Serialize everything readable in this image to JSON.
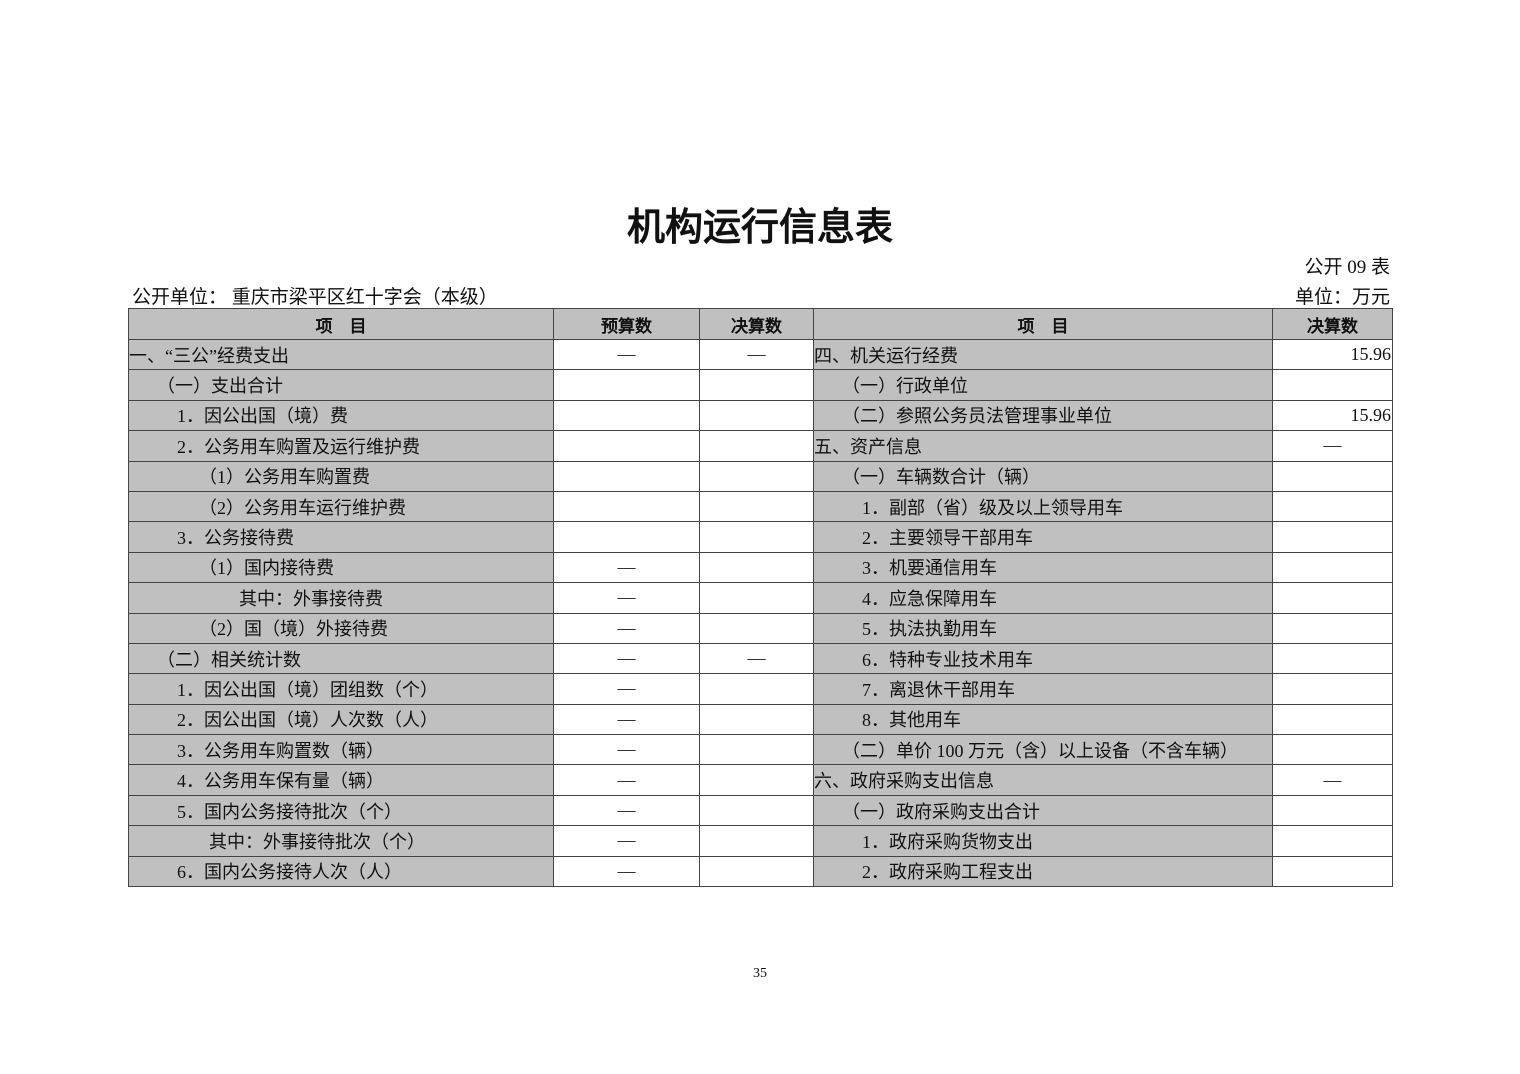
{
  "title": "机构运行信息表",
  "table_code": "公开 09 表",
  "unit_label": "公开单位：  重庆市梁平区红十字会（本级）",
  "unit": "单位：万元",
  "headers": {
    "item_left": "项　目",
    "budget": "预算数",
    "final_left": "决算数",
    "item_right": "项　目",
    "final_right": "决算数"
  },
  "left_rows": [
    {
      "label": "一、“三公”经费支出",
      "indent": 0,
      "budget": "—",
      "final": "—"
    },
    {
      "label": "（一）支出合计",
      "indent": 1,
      "budget": "",
      "final": ""
    },
    {
      "label": "1．因公出国（境）费",
      "indent": 2,
      "budget": "",
      "final": ""
    },
    {
      "label": "2．公务用车购置及运行维护费",
      "indent": 2,
      "budget": "",
      "final": ""
    },
    {
      "label": "（1）公务用车购置费",
      "indent": 3,
      "budget": "",
      "final": ""
    },
    {
      "label": "（2）公务用车运行维护费",
      "indent": 3,
      "budget": "",
      "final": ""
    },
    {
      "label": "3．公务接待费",
      "indent": 2,
      "budget": "",
      "final": ""
    },
    {
      "label": "（1）国内接待费",
      "indent": 3,
      "budget": "—",
      "final": ""
    },
    {
      "label": "其中：外事接待费",
      "indent": 4,
      "budget": "—",
      "final": ""
    },
    {
      "label": "（2）国（境）外接待费",
      "indent": 3,
      "budget": "—",
      "final": ""
    },
    {
      "label": "（二）相关统计数",
      "indent": 1,
      "budget": "—",
      "final": "—"
    },
    {
      "label": "1．因公出国（境）团组数（个）",
      "indent": 2,
      "budget": "—",
      "final": ""
    },
    {
      "label": "2．因公出国（境）人次数（人）",
      "indent": 2,
      "budget": "—",
      "final": ""
    },
    {
      "label": "3．公务用车购置数（辆）",
      "indent": 2,
      "budget": "—",
      "final": ""
    },
    {
      "label": "4．公务用车保有量（辆）",
      "indent": 2,
      "budget": "—",
      "final": ""
    },
    {
      "label": "5．国内公务接待批次（个）",
      "indent": 2,
      "budget": "—",
      "final": ""
    },
    {
      "label": "其中：外事接待批次（个）",
      "indent": 5,
      "budget": "—",
      "final": ""
    },
    {
      "label": "6．国内公务接待人次（人）",
      "indent": 2,
      "budget": "—",
      "final": ""
    }
  ],
  "right_rows": [
    {
      "label": "四、机关运行经费",
      "indent": 0,
      "final": "15.96"
    },
    {
      "label": "（一）行政单位",
      "indent": 1,
      "final": ""
    },
    {
      "label": "（二）参照公务员法管理事业单位",
      "indent": 1,
      "final": "15.96"
    },
    {
      "label": "五、资产信息",
      "indent": 0,
      "final": "—"
    },
    {
      "label": "（一）车辆数合计（辆）",
      "indent": 1,
      "final": ""
    },
    {
      "label": "1．副部（省）级及以上领导用车",
      "indent": 2,
      "final": ""
    },
    {
      "label": "2．主要领导干部用车",
      "indent": 2,
      "final": ""
    },
    {
      "label": "3．机要通信用车",
      "indent": 2,
      "final": ""
    },
    {
      "label": "4．应急保障用车",
      "indent": 2,
      "final": ""
    },
    {
      "label": "5．执法执勤用车",
      "indent": 2,
      "final": ""
    },
    {
      "label": "6．特种专业技术用车",
      "indent": 2,
      "final": ""
    },
    {
      "label": "7．离退休干部用车",
      "indent": 2,
      "final": ""
    },
    {
      "label": "8．其他用车",
      "indent": 2,
      "final": ""
    },
    {
      "label": "（二）单价 100 万元（含）以上设备（不含车辆）",
      "indent": 1,
      "final": ""
    },
    {
      "label": "六、政府采购支出信息",
      "indent": 0,
      "final": "—"
    },
    {
      "label": "（一）政府采购支出合计",
      "indent": 1,
      "final": ""
    },
    {
      "label": "1．政府采购货物支出",
      "indent": 2,
      "final": ""
    },
    {
      "label": "2．政府采购工程支出",
      "indent": 2,
      "final": ""
    }
  ],
  "page_number": "35"
}
